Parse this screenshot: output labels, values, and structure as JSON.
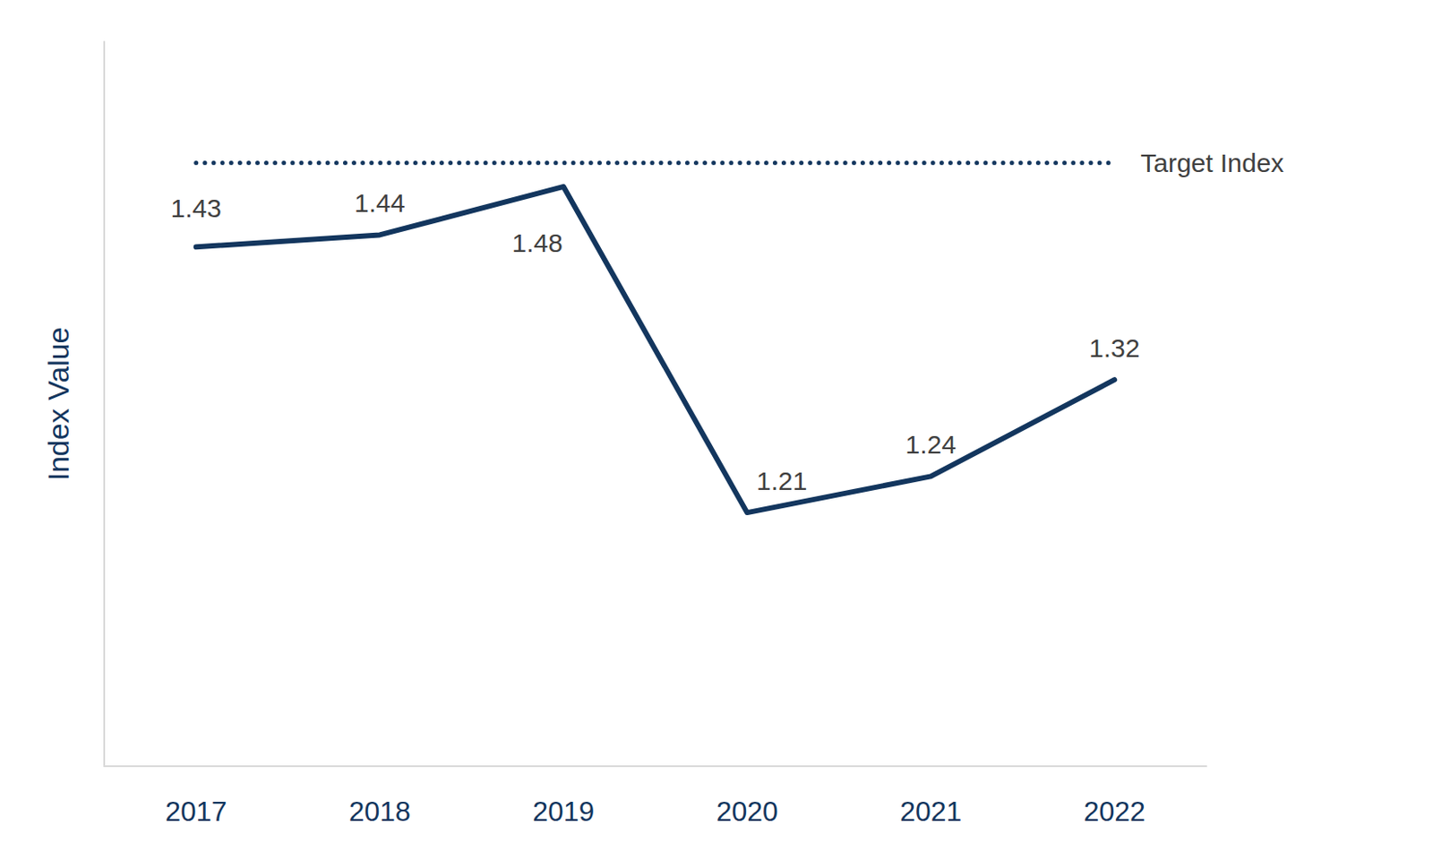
{
  "chart_data": {
    "type": "line",
    "categories": [
      "2017",
      "2018",
      "2019",
      "2020",
      "2021",
      "2022"
    ],
    "values": [
      1.43,
      1.44,
      1.48,
      1.21,
      1.24,
      1.32
    ],
    "color": "#13365e",
    "ylabel": "Index Value",
    "ylim": [
      1.0,
      1.6
    ],
    "grid": false,
    "data_labels": true,
    "tick_labels": "x",
    "marker": "none",
    "line_style": "solid",
    "target_line": {
      "value": 1.5,
      "label": "Target Index",
      "line_style": "dotted"
    }
  }
}
